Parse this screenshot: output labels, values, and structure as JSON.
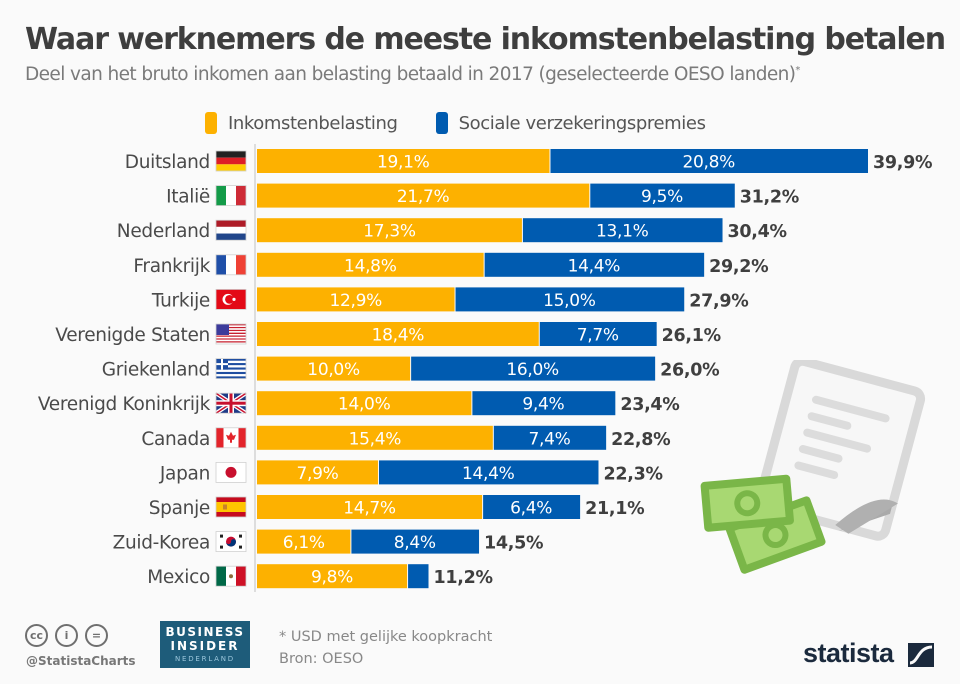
{
  "title": "Waar werknemers de meeste inkomstenbelasting betalen",
  "subtitle": "Deel van het bruto inkomen aan belasting betaald in 2017 (geselecteerde OESO landen)",
  "subtitle_marker": "*",
  "colors": {
    "income_tax": "#fdb100",
    "social": "#005bb0",
    "label_dark": "#3f3f3f"
  },
  "legend": [
    {
      "label": "Inkomstenbelasting",
      "color": "#fdb100"
    },
    {
      "label": "Sociale verzekeringspremies",
      "color": "#005bb0"
    }
  ],
  "chart_data": {
    "type": "bar",
    "orientation": "horizontal",
    "stacked": true,
    "title": "Waar werknemers de meeste inkomstenbelasting betalen",
    "subtitle": "Deel van het bruto inkomen aan belasting betaald in 2017 (geselecteerde OESO landen)*",
    "xlabel": "",
    "ylabel": "",
    "unit": "%",
    "xlim": [
      0,
      40
    ],
    "grid": false,
    "legend_position": "top",
    "categories": [
      "Duitsland",
      "Italië",
      "Nederland",
      "Frankrijk",
      "Turkije",
      "Verenigde Staten",
      "Griekenland",
      "Verenigd Koninkrijk",
      "Canada",
      "Japan",
      "Spanje",
      "Zuid-Korea",
      "Mexico"
    ],
    "flags": [
      "de",
      "it",
      "nl",
      "fr",
      "tr",
      "us",
      "gr",
      "gb",
      "ca",
      "jp",
      "es",
      "kr",
      "mx"
    ],
    "series": [
      {
        "name": "Inkomstenbelasting",
        "values": [
          19.1,
          21.7,
          17.3,
          14.8,
          12.9,
          18.4,
          10.0,
          14.0,
          15.4,
          7.9,
          14.7,
          6.1,
          9.8
        ],
        "labels": [
          "19,1%",
          "21,7%",
          "17,3%",
          "14,8%",
          "12,9%",
          "18,4%",
          "10,0%",
          "14,0%",
          "15,4%",
          "7,9%",
          "14,7%",
          "6,1%",
          "9,8%"
        ]
      },
      {
        "name": "Sociale verzekeringspremies",
        "values": [
          20.8,
          9.5,
          13.1,
          14.4,
          15.0,
          7.7,
          16.0,
          9.4,
          7.4,
          14.4,
          6.4,
          8.4,
          1.4
        ],
        "labels": [
          "20,8%",
          "9,5%",
          "13,1%",
          "14,4%",
          "15,0%",
          "7,7%",
          "16,0%",
          "9,4%",
          "7,4%",
          "14,4%",
          "6,4%",
          "8,4%",
          ""
        ]
      }
    ],
    "totals": [
      39.9,
      31.2,
      30.4,
      29.2,
      27.9,
      26.1,
      26.0,
      23.4,
      22.8,
      22.3,
      21.1,
      14.5,
      11.2
    ],
    "total_labels": [
      "39,9%",
      "31,2%",
      "30,4%",
      "29,2%",
      "27,9%",
      "26,1%",
      "26,0%",
      "23,4%",
      "22,8%",
      "22,3%",
      "21,1%",
      "14,5%",
      "11,2%"
    ]
  },
  "footer": {
    "handle": "@StatistaCharts",
    "partner_line1": "BUSINESS",
    "partner_line2": "INSIDER",
    "partner_line3": "NEDERLAND",
    "note": "* USD met gelijke koopkracht",
    "source": "Bron: OESO",
    "brand": "statista",
    "cc_icons": [
      "cc",
      "i",
      "="
    ]
  }
}
